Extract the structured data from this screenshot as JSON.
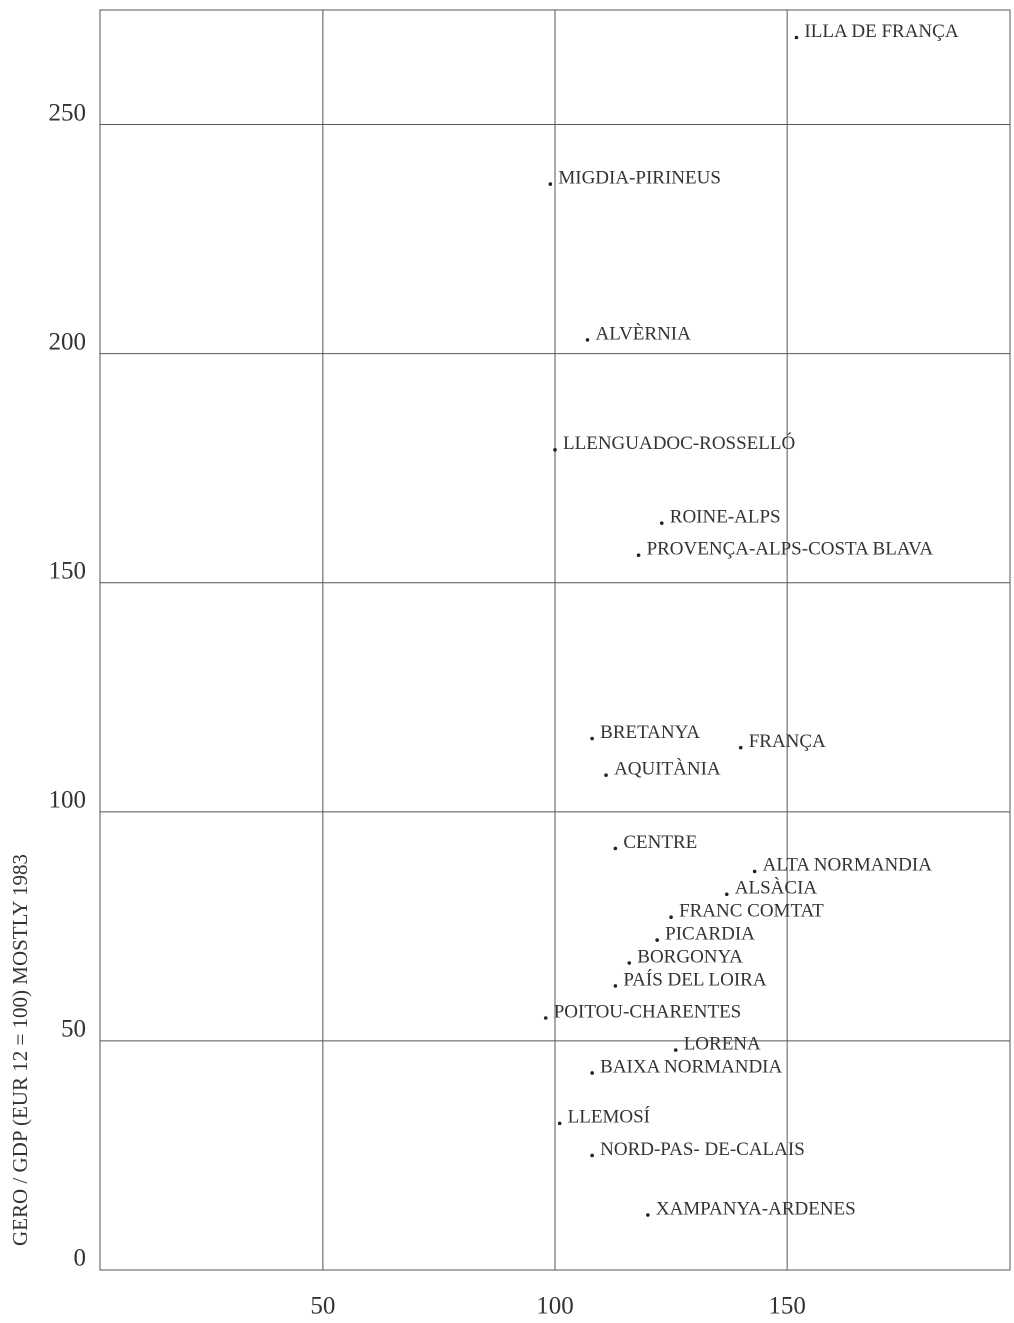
{
  "chart_data": {
    "type": "scatter",
    "y_label": "GERO / GDP (EUR 12 = 100) MOSTLY 1983",
    "x": [
      152,
      99,
      107,
      100,
      123,
      118,
      108,
      140,
      111,
      113,
      143,
      137,
      125,
      122,
      116,
      113,
      98,
      126,
      108,
      101,
      108,
      120
    ],
    "values": [
      269,
      237,
      203,
      179,
      163,
      156,
      116,
      114,
      108,
      92,
      87,
      82,
      77,
      72,
      67,
      62,
      55,
      48,
      43,
      32,
      25,
      12
    ],
    "point_labels": [
      "ILLA DE FRANÇA",
      "MIGDIA-PIRINEUS",
      "ALVÈRNIA",
      "LLENGUADOC-ROSSELLÓ",
      "ROINE-ALPS",
      "PROVENÇA-ALPS-COSTA BLAVA",
      "BRETANYA",
      "FRANÇA",
      "AQUITÀNIA",
      "CENTRE",
      "ALTA NORMANDIA",
      "ALSÀCIA",
      "FRANC  COMTAT",
      "PICARDIA",
      "BORGONYA",
      "PAÍS DEL  LOIRA",
      "POITOU-CHARENTES",
      "LORENA",
      "BAIXA NORMANDIA",
      "LLEMOSÍ",
      "NORD-PAS- DE-CALAIS",
      "XAMPANYA-ARDENES"
    ],
    "color": "#222222",
    "xlim": [
      2,
      198
    ],
    "xticks": [
      50,
      100,
      150
    ],
    "ylim": [
      0,
      275
    ],
    "yticks": [
      0,
      50,
      100,
      150,
      200,
      250
    ],
    "grid": true
  }
}
